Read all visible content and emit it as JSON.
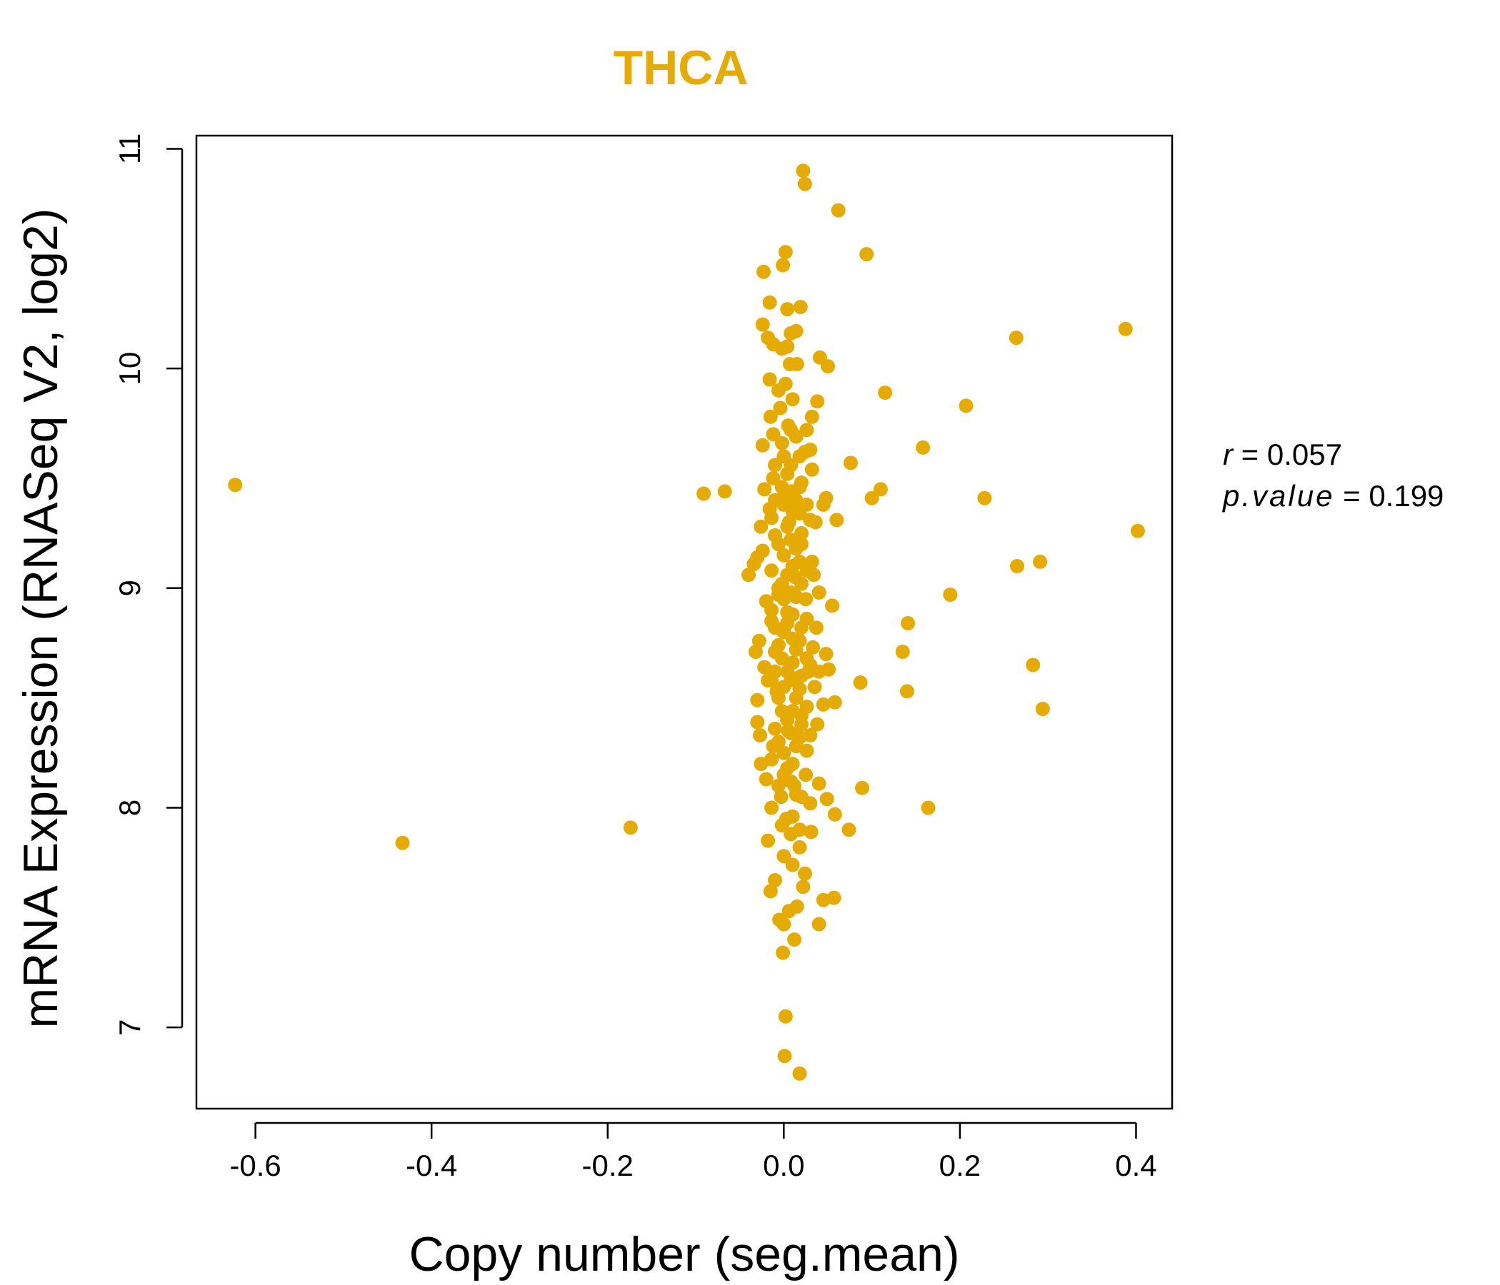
{
  "chart_data": {
    "type": "scatter",
    "title": "THCA",
    "xlabel": "Copy number (seg.mean)",
    "ylabel": "mRNA Expression (RNASeq V2, log2)",
    "xlim": [
      -0.667,
      0.441
    ],
    "ylim": [
      6.63,
      11.06
    ],
    "x_ticks": [
      -0.6,
      -0.4,
      -0.2,
      0.0,
      0.2,
      0.4
    ],
    "x_tick_labels": [
      "-0.6",
      "-0.4",
      "-0.2",
      "0.0",
      "0.2",
      "0.4"
    ],
    "y_ticks": [
      7,
      8,
      9,
      10,
      11
    ],
    "y_tick_labels": [
      "7",
      "8",
      "9",
      "10",
      "11"
    ],
    "grid": false,
    "point_color": "#E6AB02",
    "stats": {
      "r_label": "r",
      "r_value": "0.057",
      "p_label": "p.value",
      "p_value": "0.199"
    },
    "series": [
      {
        "points": [
          [
            -0.623,
            9.47
          ],
          [
            -0.433,
            7.84
          ],
          [
            -0.174,
            7.91
          ],
          [
            -0.091,
            9.43
          ],
          [
            -0.067,
            9.44
          ],
          [
            0.022,
            10.9
          ],
          [
            0.024,
            10.84
          ],
          [
            0.062,
            10.72
          ],
          [
            0.094,
            10.52
          ],
          [
            0.002,
            10.53
          ],
          [
            -0.023,
            10.44
          ],
          [
            -0.001,
            10.47
          ],
          [
            -0.016,
            10.3
          ],
          [
            0.004,
            10.27
          ],
          [
            0.019,
            10.28
          ],
          [
            -0.024,
            10.2
          ],
          [
            -0.018,
            10.14
          ],
          [
            0.014,
            10.17
          ],
          [
            0.004,
            10.1
          ],
          [
            0.041,
            10.05
          ],
          [
            0.05,
            10.01
          ],
          [
            0.015,
            10.02
          ],
          [
            0.388,
            10.18
          ],
          [
            0.264,
            10.14
          ],
          [
            0.115,
            9.89
          ],
          [
            0.207,
            9.83
          ],
          [
            0.038,
            9.85
          ],
          [
            0.032,
            9.78
          ],
          [
            0.158,
            9.64
          ],
          [
            0.076,
            9.57
          ],
          [
            0.11,
            9.45
          ],
          [
            0.1,
            9.41
          ],
          [
            0.228,
            9.41
          ],
          [
            0.048,
            9.41
          ],
          [
            0.06,
            9.31
          ],
          [
            0.402,
            9.26
          ],
          [
            0.265,
            9.1
          ],
          [
            0.291,
            9.12
          ],
          [
            0.189,
            8.97
          ],
          [
            0.141,
            8.84
          ],
          [
            0.135,
            8.71
          ],
          [
            0.14,
            8.53
          ],
          [
            0.087,
            8.57
          ],
          [
            0.058,
            8.48
          ],
          [
            0.055,
            8.92
          ],
          [
            0.283,
            8.65
          ],
          [
            0.294,
            8.45
          ],
          [
            0.051,
            8.63
          ],
          [
            0.089,
            8.09
          ],
          [
            0.164,
            8.0
          ],
          [
            0.049,
            8.04
          ],
          [
            0.058,
            7.97
          ],
          [
            0.074,
            7.9
          ],
          [
            0.057,
            7.59
          ],
          [
            0.045,
            7.58
          ],
          [
            0.04,
            7.47
          ],
          [
            0.012,
            7.4
          ],
          [
            -0.001,
            7.34
          ],
          [
            0.002,
            7.05
          ],
          [
            0.001,
            6.87
          ],
          [
            0.018,
            6.79
          ],
          [
            -0.04,
            9.06
          ],
          [
            -0.032,
            8.71
          ],
          [
            -0.03,
            8.49
          ],
          [
            -0.03,
            8.39
          ],
          [
            -0.027,
            8.33
          ],
          [
            -0.02,
            8.13
          ],
          [
            -0.018,
            7.85
          ],
          [
            -0.015,
            7.62
          ],
          [
            -0.01,
            7.67
          ],
          [
            -0.005,
            7.49
          ],
          [
            0.0,
            7.47
          ],
          [
            0.006,
            7.53
          ],
          [
            0.015,
            7.55
          ],
          [
            0.022,
            7.64
          ],
          [
            0.01,
            7.74
          ],
          [
            0.018,
            7.82
          ],
          [
            0.008,
            7.88
          ],
          [
            0.003,
            7.95
          ],
          [
            -0.003,
            8.05
          ],
          [
            0.012,
            8.1
          ],
          [
            0.025,
            8.15
          ],
          [
            0.031,
            7.89
          ],
          [
            0.04,
            8.11
          ],
          [
            0.03,
            8.02
          ],
          [
            -0.012,
            8.28
          ],
          [
            0.005,
            8.35
          ],
          [
            0.02,
            8.42
          ],
          [
            0.038,
            8.38
          ],
          [
            0.03,
            8.33
          ],
          [
            -0.008,
            8.53
          ],
          [
            0.015,
            8.59
          ],
          [
            0.035,
            8.55
          ],
          [
            0.045,
            8.47
          ],
          [
            0.028,
            8.62
          ],
          [
            -0.022,
            8.64
          ],
          [
            -0.01,
            8.71
          ],
          [
            0.01,
            8.77
          ],
          [
            0.033,
            8.73
          ],
          [
            0.048,
            8.7
          ],
          [
            -0.028,
            8.76
          ],
          [
            -0.014,
            8.85
          ],
          [
            0.004,
            8.89
          ],
          [
            0.025,
            8.95
          ],
          [
            0.04,
            8.98
          ],
          [
            -0.02,
            8.94
          ],
          [
            -0.006,
            9.0
          ],
          [
            0.013,
            9.05
          ],
          [
            0.032,
            9.12
          ],
          [
            0.02,
            9.2
          ],
          [
            -0.034,
            9.11
          ],
          [
            -0.024,
            9.17
          ],
          [
            -0.01,
            9.24
          ],
          [
            0.006,
            9.3
          ],
          [
            0.03,
            9.31
          ],
          [
            -0.026,
            9.28
          ],
          [
            -0.016,
            9.36
          ],
          [
            0.0,
            9.42
          ],
          [
            0.018,
            9.46
          ],
          [
            0.032,
            9.54
          ],
          [
            -0.022,
            9.45
          ],
          [
            -0.012,
            9.5
          ],
          [
            0.008,
            9.56
          ],
          [
            0.024,
            9.62
          ],
          [
            0.03,
            9.63
          ],
          [
            -0.024,
            9.65
          ],
          [
            -0.012,
            9.7
          ],
          [
            0.005,
            9.74
          ],
          [
            0.014,
            9.69
          ],
          [
            0.026,
            9.72
          ],
          [
            -0.015,
            9.78
          ],
          [
            -0.004,
            9.82
          ],
          [
            0.01,
            9.86
          ],
          [
            -0.016,
            9.95
          ],
          [
            0.002,
            9.93
          ],
          [
            0.007,
            10.02
          ],
          [
            -0.012,
            10.11
          ],
          [
            -0.002,
            10.09
          ],
          [
            0.008,
            10.16
          ],
          [
            -0.006,
            9.9
          ],
          [
            0.0,
            9.6
          ],
          [
            0.0,
            9.38
          ],
          [
            0.0,
            9.15
          ],
          [
            0.0,
            8.95
          ],
          [
            0.0,
            8.8
          ],
          [
            0.0,
            8.55
          ],
          [
            0.0,
            8.25
          ],
          [
            0.0,
            8.15
          ],
          [
            0.0,
            7.78
          ],
          [
            0.01,
            9.35
          ],
          [
            0.01,
            9.1
          ],
          [
            0.01,
            8.88
          ],
          [
            0.01,
            8.66
          ],
          [
            0.01,
            8.44
          ],
          [
            0.01,
            8.2
          ],
          [
            0.01,
            7.96
          ],
          [
            0.02,
            9.48
          ],
          [
            0.02,
            9.25
          ],
          [
            0.02,
            9.02
          ],
          [
            0.02,
            8.82
          ],
          [
            0.02,
            8.6
          ],
          [
            0.02,
            8.38
          ],
          [
            0.02,
            8.05
          ],
          [
            -0.006,
            9.2
          ],
          [
            -0.006,
            8.97
          ],
          [
            -0.006,
            8.74
          ],
          [
            -0.006,
            8.5
          ],
          [
            -0.006,
            8.3
          ],
          [
            -0.006,
            8.1
          ],
          [
            0.004,
            9.52
          ],
          [
            0.004,
            9.28
          ],
          [
            0.004,
            9.06
          ],
          [
            0.004,
            8.84
          ],
          [
            0.004,
            8.62
          ],
          [
            0.004,
            8.4
          ],
          [
            0.004,
            8.18
          ],
          [
            0.014,
            9.4
          ],
          [
            0.014,
            9.18
          ],
          [
            0.014,
            8.96
          ],
          [
            0.014,
            8.72
          ],
          [
            0.014,
            8.5
          ],
          [
            0.014,
            8.28
          ],
          [
            0.014,
            8.06
          ],
          [
            -0.014,
            9.32
          ],
          [
            -0.014,
            9.08
          ],
          [
            -0.014,
            8.9
          ],
          [
            -0.014,
            8.58
          ],
          [
            -0.014,
            8.22
          ],
          [
            -0.014,
            8.0
          ],
          [
            0.026,
            9.38
          ],
          [
            0.026,
            9.08
          ],
          [
            0.026,
            8.86
          ],
          [
            0.026,
            8.68
          ],
          [
            0.026,
            8.46
          ],
          [
            0.026,
            8.26
          ],
          [
            -0.002,
            9.66
          ],
          [
            -0.002,
            9.46
          ],
          [
            -0.002,
            9.02
          ],
          [
            -0.002,
            8.68
          ],
          [
            -0.002,
            8.44
          ],
          [
            -0.002,
            7.92
          ],
          [
            0.008,
            9.72
          ],
          [
            0.008,
            9.44
          ],
          [
            0.008,
            9.22
          ],
          [
            0.008,
            8.98
          ],
          [
            0.008,
            8.58
          ],
          [
            0.008,
            8.34
          ],
          [
            0.008,
            8.12
          ],
          [
            0.018,
            9.6
          ],
          [
            0.018,
            9.34
          ],
          [
            0.018,
            9.12
          ],
          [
            0.018,
            8.76
          ],
          [
            0.018,
            8.54
          ],
          [
            0.018,
            8.32
          ],
          [
            0.018,
            7.9
          ],
          [
            -0.01,
            9.56
          ],
          [
            -0.01,
            9.4
          ],
          [
            -0.01,
            8.82
          ],
          [
            -0.01,
            8.62
          ],
          [
            -0.01,
            8.36
          ],
          [
            0.037,
            8.82
          ],
          [
            0.036,
            9.3
          ],
          [
            0.045,
            9.38
          ],
          [
            -0.018,
            8.58
          ],
          [
            -0.026,
            8.2
          ],
          [
            0.03,
            8.65
          ],
          [
            0.04,
            8.62
          ],
          [
            0.034,
            9.06
          ],
          [
            -0.03,
            9.14
          ],
          [
            0.024,
            7.7
          ]
        ]
      }
    ]
  }
}
